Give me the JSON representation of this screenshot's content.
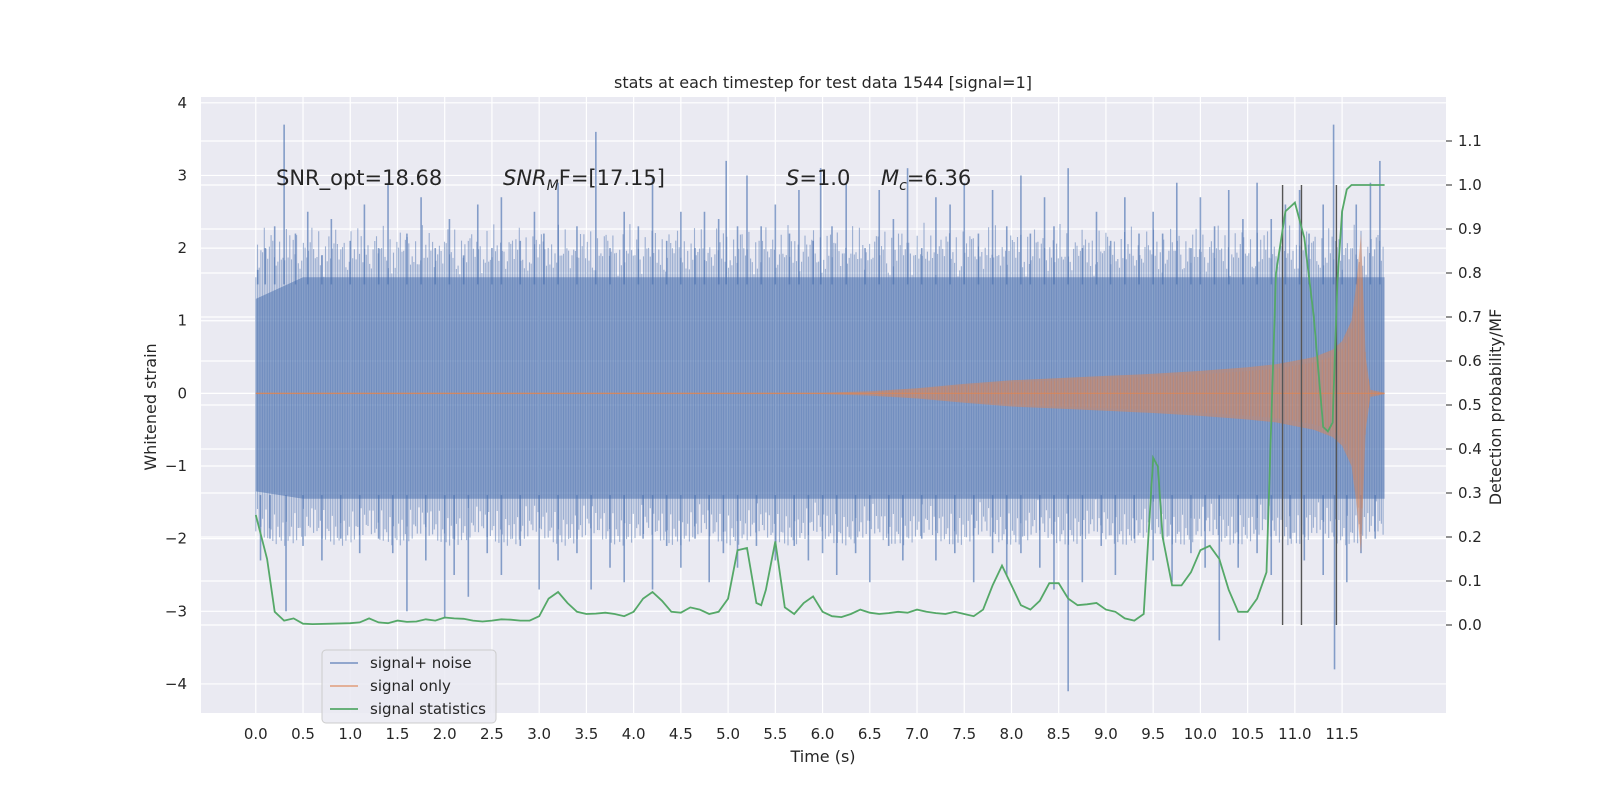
{
  "chart_data": {
    "type": "line",
    "title": "stats at each timestep for test data 1544 [signal=1]",
    "xlabel": "Time (s)",
    "ylabel": "Whitened strain",
    "y2label": "Detection probability/MF",
    "xlim": [
      -0.58,
      12.6
    ],
    "ylim": [
      -4.4,
      4.08
    ],
    "y2lim": [
      -0.2,
      1.2
    ],
    "xticks": [
      0.0,
      0.5,
      1.0,
      1.5,
      2.0,
      2.5,
      3.0,
      3.5,
      4.0,
      4.5,
      5.0,
      5.5,
      6.0,
      6.5,
      7.0,
      7.5,
      8.0,
      8.5,
      9.0,
      9.5,
      10.0,
      10.5,
      11.0,
      11.5
    ],
    "xtick_labels": [
      "0.0",
      "0.5",
      "1.0",
      "1.5",
      "2.0",
      "2.5",
      "3.0",
      "3.5",
      "4.0",
      "4.5",
      "5.0",
      "5.5",
      "6.0",
      "6.5",
      "7.0",
      "7.5",
      "8.0",
      "8.5",
      "9.0",
      "9.5",
      "10.0",
      "10.5",
      "11.0",
      "11.5"
    ],
    "yticks": [
      -4,
      -3,
      -2,
      -1,
      0,
      1,
      2,
      3,
      4
    ],
    "ytick_labels": [
      "−4",
      "−3",
      "−2",
      "−1",
      "0",
      "1",
      "2",
      "3",
      "4"
    ],
    "y2ticks": [
      0.0,
      0.1,
      0.2,
      0.3,
      0.4,
      0.5,
      0.6,
      0.7,
      0.8,
      0.9,
      1.0,
      1.1
    ],
    "y2tick_labels": [
      "0.0",
      "0.1",
      "0.2",
      "0.3",
      "0.4",
      "0.5",
      "0.6",
      "0.7",
      "0.8",
      "0.9",
      "1.0",
      "1.1"
    ],
    "grid": true,
    "legend_position": "lower-left",
    "background_color": "#eaeaf2",
    "annotations": {
      "snr_opt": "SNR_opt=18.68",
      "snr_mf_name": "SNR",
      "snr_mf_sub": "M",
      "snr_mf_rest": "F=[17.15]",
      "s_name": "S",
      "s_rest": "=1.0",
      "mc_name": "M",
      "mc_sub": "c",
      "mc_rest": "=6.36"
    },
    "vertical_lines": [
      10.87,
      11.07,
      11.44
    ],
    "series": [
      {
        "name": "signal+ noise",
        "color": "#4c72b0",
        "opacity": 0.55,
        "envelope_x": [
          0.0,
          0.5,
          1.0,
          1.5,
          2.0,
          2.5,
          3.0,
          3.5,
          4.0,
          4.5,
          5.0,
          5.5,
          6.0,
          6.5,
          7.0,
          7.5,
          8.0,
          8.5,
          9.0,
          9.5,
          10.0,
          10.5,
          11.0,
          11.5,
          11.95
        ],
        "envelope_upper": [
          1.3,
          1.6,
          1.6,
          1.6,
          1.6,
          1.6,
          1.6,
          1.6,
          1.6,
          1.6,
          1.6,
          1.6,
          1.6,
          1.6,
          1.6,
          1.6,
          1.6,
          1.6,
          1.6,
          1.6,
          1.6,
          1.6,
          1.6,
          1.6,
          1.6
        ],
        "envelope_lower": [
          -1.35,
          -1.45,
          -1.45,
          -1.45,
          -1.45,
          -1.45,
          -1.45,
          -1.45,
          -1.45,
          -1.45,
          -1.45,
          -1.45,
          -1.45,
          -1.45,
          -1.45,
          -1.45,
          -1.45,
          -1.45,
          -1.45,
          -1.45,
          -1.45,
          -1.45,
          -1.45,
          -1.45,
          -1.45
        ],
        "spikes_up": [
          [
            0.02,
            1.7
          ],
          [
            0.1,
            2.0
          ],
          [
            0.2,
            2.3
          ],
          [
            0.3,
            3.7
          ],
          [
            0.42,
            2.2
          ],
          [
            0.55,
            2.5
          ],
          [
            0.7,
            1.9
          ],
          [
            0.8,
            2.4
          ],
          [
            1.0,
            2.1
          ],
          [
            1.15,
            2.6
          ],
          [
            1.3,
            2.0
          ],
          [
            1.4,
            2.9
          ],
          [
            1.6,
            2.2
          ],
          [
            1.75,
            2.7
          ],
          [
            1.9,
            2.0
          ],
          [
            2.05,
            2.4
          ],
          [
            2.2,
            1.9
          ],
          [
            2.35,
            2.6
          ],
          [
            2.5,
            2.0
          ],
          [
            2.6,
            2.7
          ],
          [
            2.8,
            2.1
          ],
          [
            2.95,
            2.5
          ],
          [
            3.05,
            2.2
          ],
          [
            3.2,
            2.9
          ],
          [
            3.4,
            2.3
          ],
          [
            3.6,
            3.6
          ],
          [
            3.75,
            2.0
          ],
          [
            3.9,
            2.5
          ],
          [
            4.05,
            2.3
          ],
          [
            4.2,
            3.0
          ],
          [
            4.35,
            2.1
          ],
          [
            4.5,
            2.5
          ],
          [
            4.65,
            2.0
          ],
          [
            4.75,
            2.5
          ],
          [
            4.9,
            2.4
          ],
          [
            4.98,
            3.2
          ],
          [
            5.1,
            2.3
          ],
          [
            5.2,
            3.0
          ],
          [
            5.35,
            2.3
          ],
          [
            5.5,
            2.6
          ],
          [
            5.65,
            2.2
          ],
          [
            5.75,
            2.8
          ],
          [
            5.9,
            2.1
          ],
          [
            5.98,
            3.1
          ],
          [
            6.1,
            2.3
          ],
          [
            6.25,
            2.9
          ],
          [
            6.45,
            2.0
          ],
          [
            6.6,
            2.8
          ],
          [
            6.75,
            2.4
          ],
          [
            6.9,
            3.1
          ],
          [
            7.05,
            2.0
          ],
          [
            7.2,
            2.7
          ],
          [
            7.35,
            2.6
          ],
          [
            7.5,
            2.9
          ],
          [
            7.65,
            2.2
          ],
          [
            7.8,
            2.8
          ],
          [
            7.95,
            2.3
          ],
          [
            8.1,
            3.0
          ],
          [
            8.2,
            2.2
          ],
          [
            8.35,
            2.7
          ],
          [
            8.45,
            2.3
          ],
          [
            8.6,
            3.1
          ],
          [
            8.75,
            2.0
          ],
          [
            8.9,
            2.5
          ],
          [
            9.05,
            2.1
          ],
          [
            9.2,
            2.7
          ],
          [
            9.35,
            2.2
          ],
          [
            9.5,
            2.5
          ],
          [
            9.6,
            2.2
          ],
          [
            9.75,
            2.9
          ],
          [
            9.9,
            2.0
          ],
          [
            10.0,
            2.7
          ],
          [
            10.15,
            2.3
          ],
          [
            10.3,
            2.8
          ],
          [
            10.45,
            2.4
          ],
          [
            10.6,
            2.9
          ],
          [
            10.75,
            2.4
          ],
          [
            10.9,
            2.6
          ],
          [
            11.05,
            2.8
          ],
          [
            11.15,
            2.2
          ],
          [
            11.3,
            2.6
          ],
          [
            11.41,
            3.7
          ],
          [
            11.5,
            2.5
          ],
          [
            11.65,
            2.6
          ],
          [
            11.8,
            2.9
          ],
          [
            11.9,
            3.2
          ]
        ],
        "spikes_down": [
          [
            0.05,
            -2.3
          ],
          [
            0.15,
            -2.0
          ],
          [
            0.32,
            -3.0
          ],
          [
            0.5,
            -2.1
          ],
          [
            0.7,
            -2.3
          ],
          [
            0.9,
            -2.0
          ],
          [
            1.1,
            -2.2
          ],
          [
            1.3,
            -2.0
          ],
          [
            1.45,
            -2.2
          ],
          [
            1.6,
            -3.0
          ],
          [
            1.8,
            -2.3
          ],
          [
            2.0,
            -3.1
          ],
          [
            2.1,
            -2.5
          ],
          [
            2.25,
            -2.8
          ],
          [
            2.45,
            -2.2
          ],
          [
            2.6,
            -2.5
          ],
          [
            2.8,
            -2.1
          ],
          [
            3.0,
            -2.7
          ],
          [
            3.2,
            -2.3
          ],
          [
            3.4,
            -2.2
          ],
          [
            3.55,
            -2.7
          ],
          [
            3.75,
            -2.4
          ],
          [
            3.9,
            -2.6
          ],
          [
            4.1,
            -2.0
          ],
          [
            4.2,
            -2.7
          ],
          [
            4.35,
            -2.1
          ],
          [
            4.5,
            -2.4
          ],
          [
            4.65,
            -2.0
          ],
          [
            4.8,
            -2.6
          ],
          [
            4.95,
            -2.2
          ],
          [
            5.1,
            -2.4
          ],
          [
            5.3,
            -2.1
          ],
          [
            5.5,
            -2.3
          ],
          [
            5.7,
            -2.1
          ],
          [
            5.85,
            -2.3
          ],
          [
            6.0,
            -2.2
          ],
          [
            6.15,
            -2.5
          ],
          [
            6.35,
            -2.2
          ],
          [
            6.5,
            -2.6
          ],
          [
            6.7,
            -2.1
          ],
          [
            6.85,
            -2.3
          ],
          [
            7.05,
            -2.0
          ],
          [
            7.2,
            -2.3
          ],
          [
            7.4,
            -2.2
          ],
          [
            7.6,
            -2.6
          ],
          [
            7.8,
            -2.2
          ],
          [
            7.95,
            -2.5
          ],
          [
            8.1,
            -2.2
          ],
          [
            8.3,
            -2.4
          ],
          [
            8.45,
            -2.7
          ],
          [
            8.6,
            -4.1
          ],
          [
            8.75,
            -2.6
          ],
          [
            8.95,
            -2.1
          ],
          [
            9.1,
            -2.5
          ],
          [
            9.3,
            -2.0
          ],
          [
            9.5,
            -2.3
          ],
          [
            9.7,
            -2.6
          ],
          [
            9.9,
            -2.2
          ],
          [
            10.05,
            -2.4
          ],
          [
            10.2,
            -3.4
          ],
          [
            10.4,
            -2.4
          ],
          [
            10.6,
            -2.2
          ],
          [
            10.75,
            -2.5
          ],
          [
            10.95,
            -2.0
          ],
          [
            11.1,
            -2.3
          ],
          [
            11.3,
            -2.5
          ],
          [
            11.42,
            -3.8
          ],
          [
            11.55,
            -2.6
          ],
          [
            11.7,
            -2.2
          ],
          [
            11.85,
            -2.0
          ]
        ]
      },
      {
        "name": "signal only",
        "color": "#dd8452",
        "opacity": 0.5,
        "envelope_x": [
          0.0,
          6.0,
          6.5,
          7.0,
          7.5,
          8.0,
          8.5,
          9.0,
          9.5,
          10.0,
          10.5,
          10.8,
          11.0,
          11.2,
          11.4,
          11.5,
          11.6,
          11.65,
          11.7,
          11.75,
          11.8,
          11.95
        ],
        "envelope_amp": [
          0.01,
          0.01,
          0.03,
          0.07,
          0.13,
          0.18,
          0.21,
          0.24,
          0.27,
          0.31,
          0.36,
          0.4,
          0.45,
          0.5,
          0.6,
          0.72,
          1.0,
          1.5,
          2.2,
          0.5,
          0.05,
          0.01
        ]
      },
      {
        "name": "signal statistics",
        "color": "#55a868",
        "axis": "right",
        "x": [
          0.0,
          0.12,
          0.2,
          0.3,
          0.4,
          0.5,
          0.6,
          0.8,
          1.0,
          1.1,
          1.2,
          1.3,
          1.4,
          1.5,
          1.6,
          1.7,
          1.8,
          1.9,
          2.0,
          2.1,
          2.2,
          2.3,
          2.4,
          2.5,
          2.6,
          2.7,
          2.8,
          2.9,
          3.0,
          3.1,
          3.2,
          3.3,
          3.4,
          3.5,
          3.6,
          3.7,
          3.8,
          3.9,
          4.0,
          4.1,
          4.2,
          4.3,
          4.4,
          4.5,
          4.6,
          4.7,
          4.8,
          4.9,
          5.0,
          5.1,
          5.2,
          5.3,
          5.35,
          5.4,
          5.5,
          5.6,
          5.7,
          5.8,
          5.9,
          6.0,
          6.1,
          6.2,
          6.3,
          6.4,
          6.5,
          6.6,
          6.7,
          6.8,
          6.9,
          7.0,
          7.1,
          7.2,
          7.3,
          7.4,
          7.5,
          7.6,
          7.7,
          7.8,
          7.9,
          8.0,
          8.1,
          8.2,
          8.3,
          8.4,
          8.5,
          8.6,
          8.7,
          8.8,
          8.9,
          9.0,
          9.1,
          9.2,
          9.3,
          9.4,
          9.5,
          9.55,
          9.6,
          9.7,
          9.8,
          9.9,
          10.0,
          10.1,
          10.2,
          10.3,
          10.4,
          10.5,
          10.6,
          10.7,
          10.8,
          10.9,
          11.0,
          11.1,
          11.2,
          11.3,
          11.35,
          11.4,
          11.45,
          11.5,
          11.55,
          11.6,
          11.7,
          11.8,
          11.95
        ],
        "values": [
          0.25,
          0.15,
          0.03,
          0.01,
          0.015,
          0.003,
          0.002,
          0.003,
          0.004,
          0.006,
          0.015,
          0.006,
          0.004,
          0.01,
          0.007,
          0.008,
          0.013,
          0.01,
          0.017,
          0.015,
          0.014,
          0.01,
          0.008,
          0.01,
          0.013,
          0.012,
          0.01,
          0.01,
          0.02,
          0.06,
          0.075,
          0.05,
          0.03,
          0.025,
          0.026,
          0.028,
          0.025,
          0.02,
          0.03,
          0.06,
          0.075,
          0.055,
          0.03,
          0.028,
          0.04,
          0.035,
          0.025,
          0.03,
          0.06,
          0.17,
          0.175,
          0.05,
          0.045,
          0.08,
          0.19,
          0.04,
          0.025,
          0.05,
          0.065,
          0.03,
          0.02,
          0.018,
          0.025,
          0.035,
          0.028,
          0.025,
          0.027,
          0.03,
          0.028,
          0.035,
          0.03,
          0.027,
          0.025,
          0.03,
          0.025,
          0.02,
          0.035,
          0.09,
          0.135,
          0.09,
          0.045,
          0.035,
          0.055,
          0.095,
          0.095,
          0.06,
          0.045,
          0.047,
          0.05,
          0.035,
          0.03,
          0.015,
          0.01,
          0.025,
          0.38,
          0.36,
          0.2,
          0.09,
          0.09,
          0.12,
          0.17,
          0.18,
          0.15,
          0.08,
          0.03,
          0.03,
          0.06,
          0.12,
          0.8,
          0.94,
          0.96,
          0.88,
          0.7,
          0.45,
          0.44,
          0.46,
          0.78,
          0.94,
          0.99,
          1.0,
          1.0,
          1.0,
          1.0
        ]
      }
    ]
  }
}
